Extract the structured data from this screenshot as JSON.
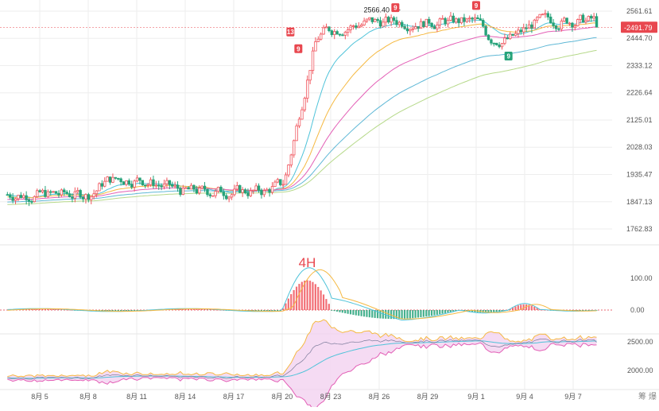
{
  "chart_data": [
    {
      "type": "candlestick",
      "panel": "price",
      "y_axis_ticks": [
        "2561.61",
        "2444.70",
        "2333.12",
        "2226.64",
        "2125.01",
        "2028.03",
        "1935.47",
        "1847.13",
        "1762.83"
      ],
      "ylim": [
        1740,
        2600
      ],
      "current_price": "2491.79",
      "high_annotation": "2566.40",
      "td_markers": [
        {
          "label": "13",
          "date": "8月21",
          "price": 2470
        },
        {
          "label": "9",
          "date": "8月21",
          "price": 2400
        },
        {
          "label": "9",
          "date": "8月27",
          "price": 2575
        },
        {
          "label": "9",
          "date": "9月1",
          "price": 2585
        },
        {
          "label": "9",
          "date": "9月3",
          "price": 2370
        }
      ],
      "ohlc_approx": {
        "x_start": "8月3",
        "x_end": "9月8",
        "bar_interval": "4H",
        "phases": [
          {
            "from": "8月3",
            "to": "8月8",
            "price": 1870
          },
          {
            "from": "8月8",
            "to": "8月11",
            "price": 1920
          },
          {
            "from": "8月11",
            "to": "8月19",
            "price": 1880
          },
          {
            "from": "8月19",
            "to": "8月20",
            "price": 1900
          },
          {
            "from": "8月20",
            "to": "8月22",
            "price": 2470
          },
          {
            "from": "8月22",
            "to": "9月1",
            "price": 2515
          },
          {
            "from": "9月1",
            "to": "9月3",
            "price": 2440
          },
          {
            "from": "9月3",
            "to": "9月8",
            "price": 2520
          }
        ]
      },
      "moving_averages": [
        {
          "color": "#4fc3d9",
          "lag": "fast"
        },
        {
          "color": "#f5b942",
          "lag": "medium"
        },
        {
          "color": "#e35fb6",
          "lag": "slow"
        },
        {
          "color": "#5fb8d6",
          "lag": "slower"
        },
        {
          "color": "#b6d98a",
          "lag": "slowest"
        }
      ]
    },
    {
      "type": "histogram",
      "panel": "macd",
      "interval_label": "4H",
      "y_axis_ticks": [
        "100.00",
        "0.00"
      ],
      "ylim": [
        -40,
        140
      ],
      "peak": {
        "date": "8月22",
        "value": 125
      },
      "colors": {
        "positive": "#f0565e",
        "negative": "#26a37a",
        "dif": "#4fc3d9",
        "dea": "#f5b942"
      }
    },
    {
      "type": "line",
      "panel": "bollinger",
      "y_axis_ticks": [
        "2500.00",
        "2000.00"
      ],
      "ylim": [
        1850,
        2600
      ],
      "colors": {
        "band_fill": "#f2d2f0",
        "upper": "#f5b942",
        "lower": "#e35fb6",
        "mid": "#4fc3d9"
      }
    }
  ],
  "x_axis_ticks": [
    "8月 5",
    "8月 8",
    "8月 11",
    "8月 14",
    "8月 17",
    "8月 20",
    "8月 23",
    "8月 26",
    "8月 29",
    "9月 1",
    "9月 4",
    "9月 7"
  ],
  "corner_labels": [
    "筹",
    "爆"
  ],
  "colors": {
    "up": "#f0565e",
    "down": "#26a37a",
    "price_tag": "#e8474f",
    "grid": "#eeeeee",
    "axis_text": "#555555"
  }
}
